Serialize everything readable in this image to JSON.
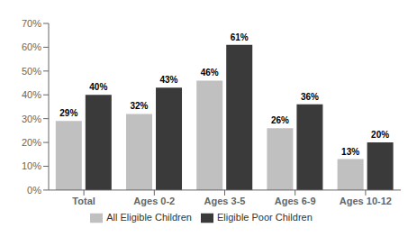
{
  "chart_data": {
    "type": "bar",
    "categories": [
      "Total",
      "Ages 0-2",
      "Ages 3-5",
      "Ages 6-9",
      "Ages 10-12"
    ],
    "series": [
      {
        "name": "All Eligible Children",
        "color": "#c0c0c0",
        "values": [
          29,
          32,
          46,
          26,
          13
        ],
        "value_labels": [
          "29%",
          "32%",
          "46%",
          "26%",
          "13%"
        ]
      },
      {
        "name": "Eligible Poor Children",
        "color": "#3a3a3a",
        "values": [
          40,
          43,
          61,
          36,
          20
        ],
        "value_labels": [
          "40%",
          "43%",
          "61%",
          "36%",
          "20%"
        ]
      }
    ],
    "ylim": [
      0,
      70
    ],
    "yticks": [
      {
        "value": 0,
        "label": "0%"
      },
      {
        "value": 10,
        "label": "10%"
      },
      {
        "value": 20,
        "label": "20%"
      },
      {
        "value": 30,
        "label": "30%"
      },
      {
        "value": 40,
        "label": "40%"
      },
      {
        "value": 50,
        "label": "50%"
      },
      {
        "value": 60,
        "label": "60%"
      },
      {
        "value": 70,
        "label": "70%"
      }
    ],
    "data_labels": true,
    "legend": "bottom",
    "grid": false
  }
}
